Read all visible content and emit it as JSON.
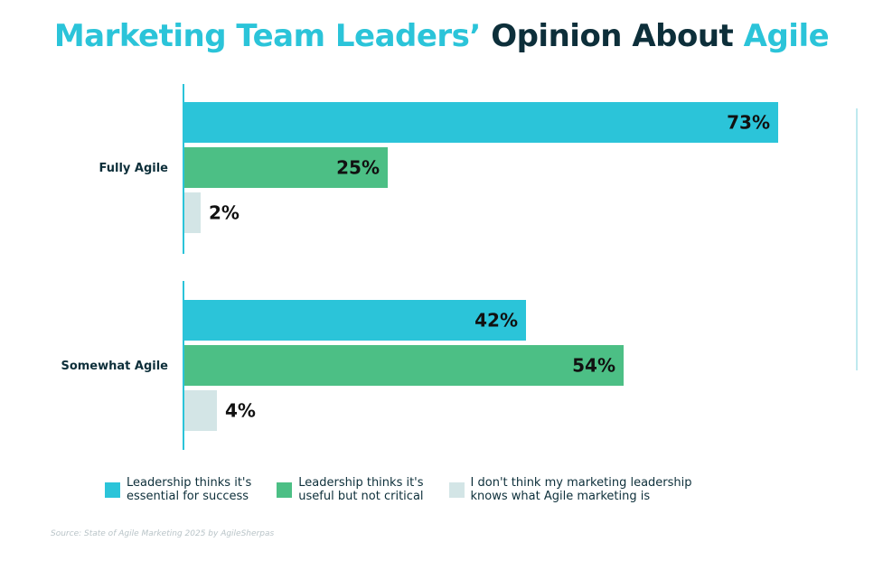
{
  "title": {
    "part1": "Marketing Team Leaders’",
    "part2": "Opinion About",
    "part3": "Agile"
  },
  "colors": {
    "accent": "#2bc4d9",
    "dark": "#0d2f3a",
    "green": "#4cbf85",
    "light": "#d3e5e6"
  },
  "chart_data": {
    "type": "bar",
    "orientation": "horizontal",
    "categories": [
      "Fully Agile",
      "Somewhat Agile"
    ],
    "series": [
      {
        "name": "Leadership thinks it's\nessential for success",
        "values": [
          73,
          42
        ],
        "labels": [
          "73%",
          "42%"
        ],
        "color": "#2bc4d9"
      },
      {
        "name": "Leadership thinks it's\nuseful but not critical",
        "values": [
          25,
          54
        ],
        "labels": [
          "25%",
          "54%"
        ],
        "color": "#4cbf85"
      },
      {
        "name": "I don't think my marketing leadership\nknows what Agile marketing is",
        "values": [
          2,
          4
        ],
        "labels": [
          "2%",
          "4%"
        ],
        "color": "#d3e5e6"
      }
    ],
    "xlim": [
      0,
      100
    ],
    "unit": "%",
    "legend_position": "bottom"
  },
  "source": "Source: State of Agile Marketing 2025 by AgileSherpas"
}
